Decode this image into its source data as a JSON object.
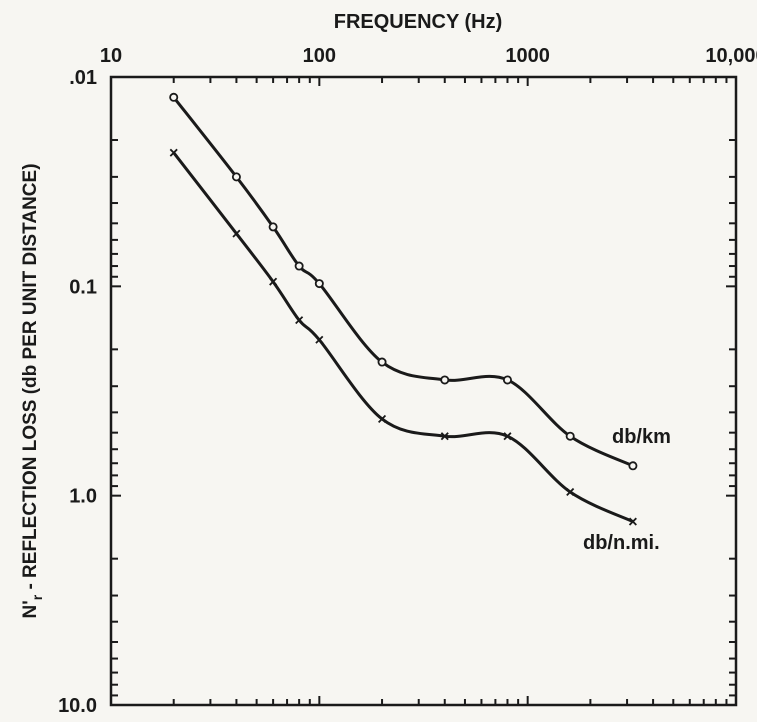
{
  "chart_data": {
    "type": "line",
    "title": "",
    "xlabel": "FREQUENCY (Hz)",
    "ylabel_main": "N'",
    "ylabel_sub": "r",
    "ylabel_rest": " - REFLECTION LOSS (db PER UNIT DISTANCE)",
    "x_scale": "log",
    "y_scale": "log",
    "y_inverted": true,
    "xlim": [
      10,
      10000
    ],
    "ylim": [
      0.01,
      10.0
    ],
    "x_axis_position": "top",
    "x_tick_values": [
      10,
      100,
      1000,
      10000
    ],
    "x_tick_labels": [
      "10",
      "100",
      "1000",
      "10,000"
    ],
    "y_tick_values": [
      0.01,
      0.1,
      1.0,
      10.0
    ],
    "y_tick_labels": [
      ".01",
      "0.1",
      "1.0",
      "10.0"
    ],
    "grid": false,
    "series": [
      {
        "name": "db/km",
        "marker": "circle",
        "x": [
          20,
          40,
          60,
          80,
          100,
          200,
          400,
          800,
          1600,
          3200
        ],
        "y": [
          0.0125,
          0.03,
          0.052,
          0.08,
          0.097,
          0.23,
          0.28,
          0.28,
          0.52,
          0.72
        ]
      },
      {
        "name": "db/n.mi.",
        "marker": "x",
        "x": [
          20,
          40,
          60,
          80,
          100,
          200,
          400,
          800,
          1600,
          3200
        ],
        "y": [
          0.023,
          0.056,
          0.095,
          0.145,
          0.18,
          0.43,
          0.52,
          0.52,
          0.96,
          1.33
        ]
      }
    ],
    "annotations": [
      "db/km",
      "db/n.mi."
    ],
    "colors": {
      "line": "#1a1a1a",
      "background": "#f7f6f2"
    }
  }
}
